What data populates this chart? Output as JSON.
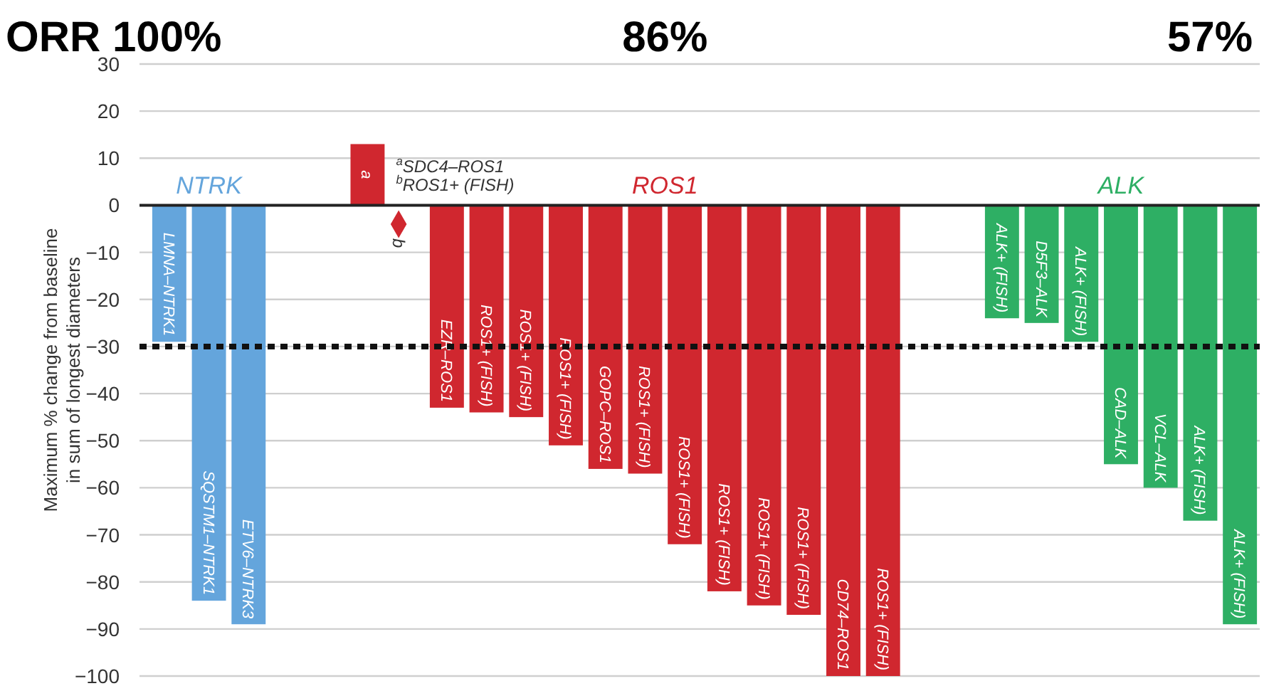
{
  "chart_data": {
    "type": "bar",
    "ylabel": "Maximum % change from baseline in sum of longest diameters",
    "categories": [
      "LMNA–NTRK1",
      "SQSTM1–NTRK1",
      "ETV6–NTRK3",
      null,
      null,
      "a",
      "b",
      "EZR–ROS1",
      "ROS1+ (FISH)",
      "ROS1+ (FISH)",
      "ROS1+ (FISH)",
      "GOPC–ROS1",
      "ROS1+ (FISH)",
      "ROS1+ (FISH)",
      "ROS1+ (FISH)",
      "ROS1+ (FISH)",
      "ROS1+ (FISH)",
      "CD74–ROS1",
      "ROS1+ (FISH)",
      null,
      null,
      "ALK+ (FISH)",
      "D5F3–ALK",
      "ALK+ (FISH)",
      "CAD–ALK",
      "VCL–ALK",
      "ALK+ (FISH)",
      "ALK+ (FISH)"
    ],
    "series": [
      {
        "name": "NTRK",
        "color": "#64a5dc",
        "values": [
          -29,
          -84,
          -89,
          null,
          null,
          null,
          null,
          null,
          null,
          null,
          null,
          null,
          null,
          null,
          null,
          null,
          null,
          null,
          null,
          null,
          null,
          null,
          null,
          null,
          null,
          null,
          null,
          null
        ]
      },
      {
        "name": "ROS1",
        "color": "#d0272f",
        "values": [
          null,
          null,
          null,
          null,
          null,
          13,
          null,
          -43,
          -44,
          -45,
          -51,
          -56,
          -57,
          -72,
          -82,
          -85,
          -87,
          -100,
          -100,
          null,
          null,
          null,
          null,
          null,
          null,
          null,
          null,
          null
        ]
      },
      {
        "type": "scatter",
        "color": "#d0272f",
        "x": [
          "b"
        ],
        "values": [
          -4
        ]
      },
      {
        "name": "ALK",
        "color": "#2eaf64",
        "values": [
          null,
          null,
          null,
          null,
          null,
          null,
          null,
          null,
          null,
          null,
          null,
          null,
          null,
          null,
          null,
          null,
          null,
          null,
          null,
          null,
          null,
          -24,
          -25,
          -29,
          -55,
          -60,
          -67,
          -89
        ]
      }
    ],
    "ylim": [
      -100,
      30
    ],
    "yticks": [
      -100,
      -90,
      -80,
      -70,
      -60,
      -50,
      -40,
      -30,
      -20,
      -10,
      0,
      10,
      20,
      30
    ],
    "grid": "y",
    "marker": "diamond",
    "ref_lines": [
      {
        "axis": "y",
        "value": -30,
        "color": "#111111",
        "line_style": "dotted"
      }
    ],
    "annotations": [
      "ORR 100%",
      "86%",
      "57%",
      "$^{a}$SDC4–ROS1",
      "$^{b}$ROS1+ (FISH)"
    ]
  }
}
